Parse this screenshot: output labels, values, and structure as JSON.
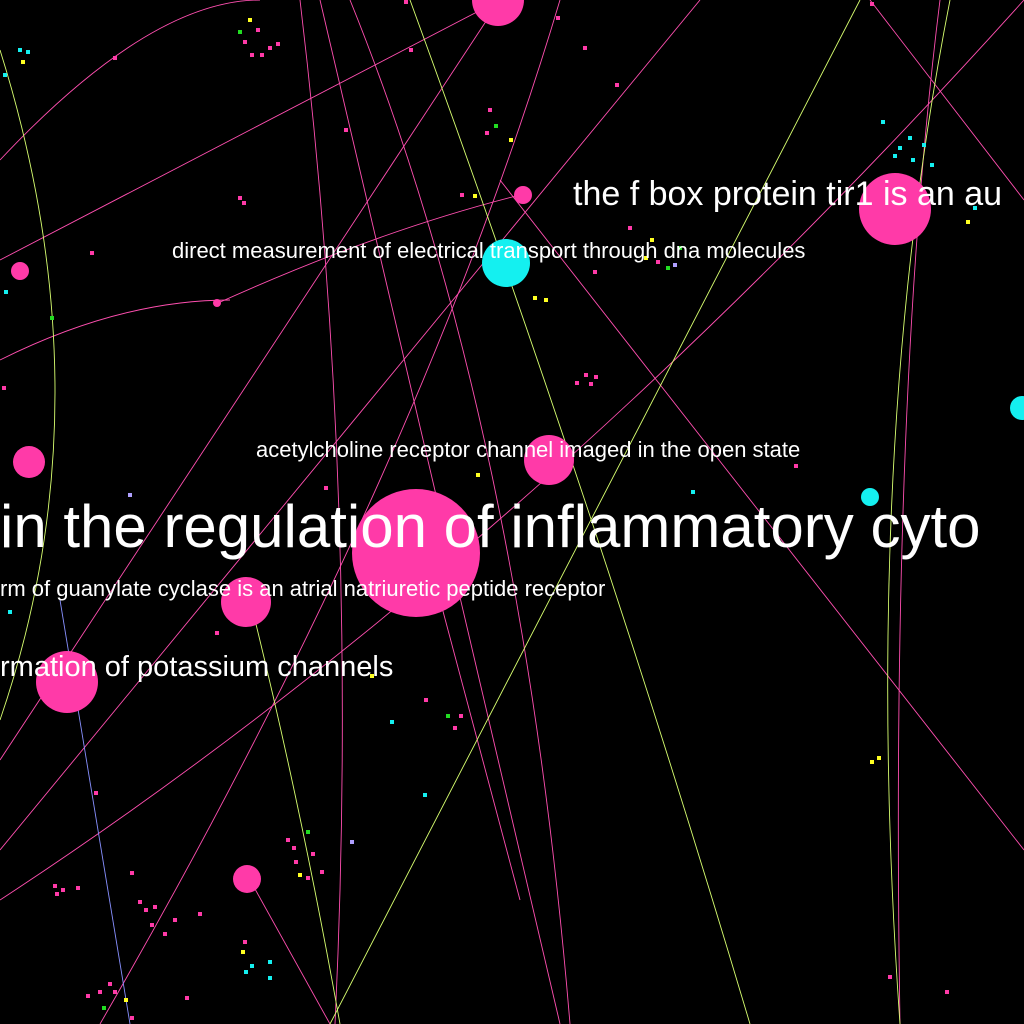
{
  "colors": {
    "background": "#000000",
    "node_pink": "#ff3aa8",
    "node_cyan": "#14f0f0",
    "dot_yellow": "#ffff22",
    "dot_green": "#22dd22",
    "dot_lavender": "#b0a0ff",
    "edge_pink": "#ff4fb0",
    "edge_green": "#d8ff70",
    "edge_blue": "#8890ff",
    "text": "#ffffff"
  },
  "labels": [
    {
      "text": "the f box protein tir1 is an au"
    },
    {
      "text": "direct measurement of electrical transport through dna molecules"
    },
    {
      "text": "acetylcholine receptor channel imaged in the open state"
    },
    {
      "text": "in the regulation of inflammatory cyto"
    },
    {
      "text": "rm of guanylate cyclase is an atrial natriuretic peptide receptor"
    },
    {
      "text": "rmation of potassium channels"
    }
  ]
}
